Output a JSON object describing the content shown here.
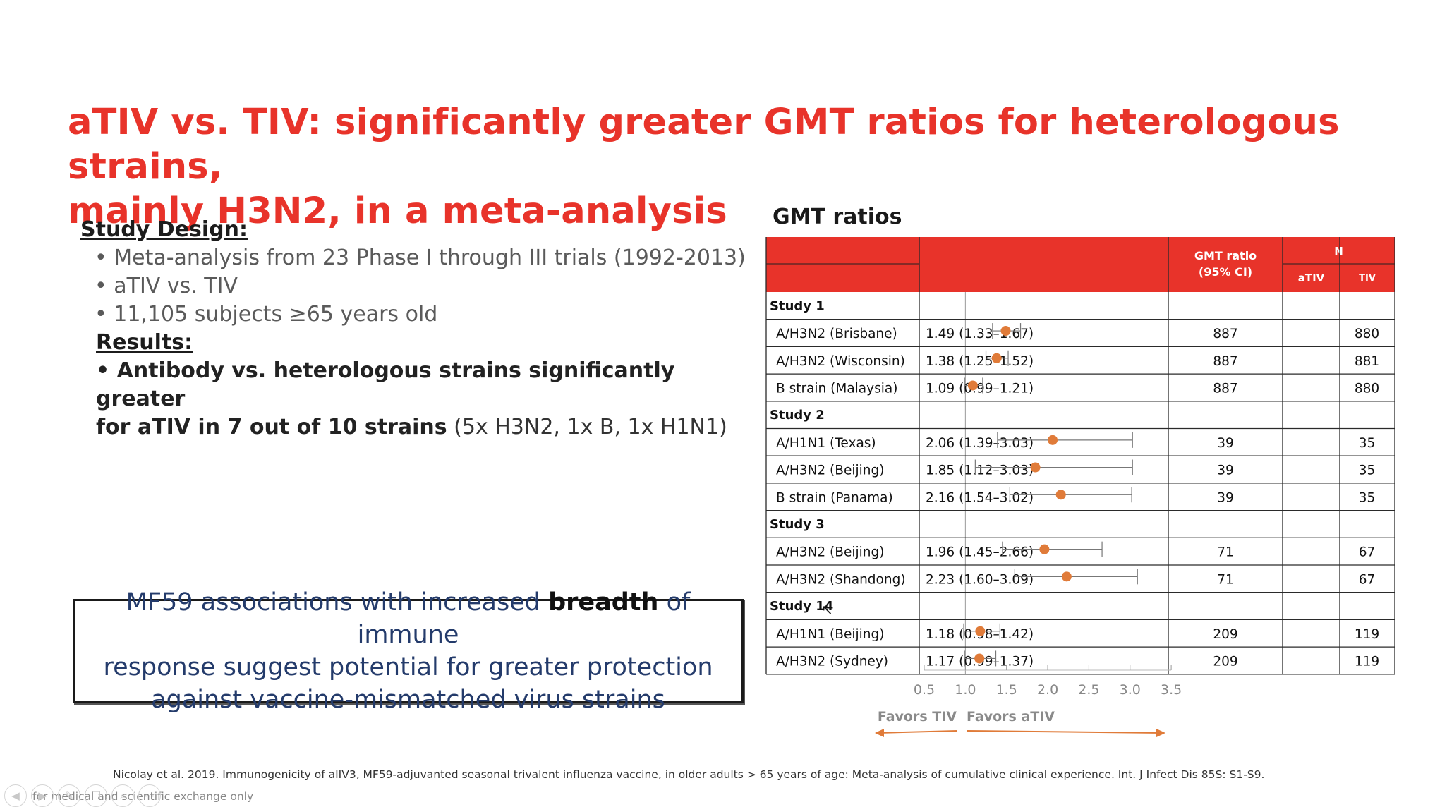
{
  "slide": {
    "title_line1": "aTIV vs. TIV: significantly greater GMT ratios for heterologous strains,",
    "title_line2": "mainly H3N2, in a meta-analysis"
  },
  "study_design": {
    "heading": "Study Design:",
    "bullets": [
      "Meta-analysis from 23 Phase I through III trials (1992-2013)",
      "aTIV vs. TIV",
      "11,105 subjects ≥65 years old"
    ]
  },
  "results": {
    "heading": "Results:",
    "line1_bold": "• Antibody vs. heterologous strains  significantly greater",
    "line2_bold": "for aTIV in 7 out of 10 strains",
    "line2_normal": " (5x H3N2, 1x B, 1x H1N1)"
  },
  "callout": {
    "part1": "MF59 associations with increased ",
    "bold": "breadth",
    "part2": " of immune",
    "line2": "response suggest potential for greater protection",
    "line3": "against vaccine-mismatched virus strains"
  },
  "chart_title": "GMT ratios",
  "chart_data": {
    "type": "forest",
    "header": {
      "gmt_line1": "GMT ratio",
      "gmt_line2": "(95% CI)",
      "n": "N",
      "ativ": "aTIV",
      "tiv": "TIV"
    },
    "xlim": [
      0.5,
      3.5
    ],
    "ticks": [
      "0.5",
      "1.0",
      "1.5",
      "2.0",
      "2.5",
      "3.0",
      "3.5"
    ],
    "reference_line": 1.0,
    "favors_left": "Favors TIV",
    "favors_right": "Favors aTIV",
    "colors": {
      "header": "#e8332a",
      "point": "#e07b39",
      "arrow": "#e07b39"
    },
    "rows": [
      {
        "study": "Study 1"
      },
      {
        "label": "A/H3N2 (Brisbane)",
        "value": 1.49,
        "lo": 1.33,
        "hi": 1.67,
        "ci": "1.49 (1.33–1.67)",
        "n_ativ": "887",
        "n_tiv": "880"
      },
      {
        "label": "A/H3N2 (Wisconsin)",
        "value": 1.38,
        "lo": 1.25,
        "hi": 1.52,
        "ci": "1.38 (1.25–1.52)",
        "n_ativ": "887",
        "n_tiv": "881"
      },
      {
        "label": "B strain (Malaysia)",
        "value": 1.09,
        "lo": 0.99,
        "hi": 1.21,
        "ci": "1.09 (0.99–1.21)",
        "n_ativ": "887",
        "n_tiv": "880"
      },
      {
        "study": "Study 2"
      },
      {
        "label": "A/H1N1 (Texas)",
        "value": 2.06,
        "lo": 1.39,
        "hi": 3.03,
        "ci": "2.06 (1.39–3.03)",
        "n_ativ": "39",
        "n_tiv": "35"
      },
      {
        "label": "A/H3N2 (Beijing)",
        "value": 1.85,
        "lo": 1.12,
        "hi": 3.03,
        "ci": "1.85 (1.12–3.03)",
        "n_ativ": "39",
        "n_tiv": "35"
      },
      {
        "label": "B strain (Panama)",
        "value": 2.16,
        "lo": 1.54,
        "hi": 3.02,
        "ci": "2.16 (1.54–3.02)",
        "n_ativ": "39",
        "n_tiv": "35"
      },
      {
        "study": "Study 3"
      },
      {
        "label": "A/H3N2 (Beijing)",
        "value": 1.96,
        "lo": 1.45,
        "hi": 2.66,
        "ci": "1.96 (1.45–2.66)",
        "n_ativ": "71",
        "n_tiv": "67"
      },
      {
        "label": "A/H3N2 (Shandong)",
        "value": 2.23,
        "lo": 1.6,
        "hi": 3.09,
        "ci": "2.23 (1.60–3.09)",
        "n_ativ": "71",
        "n_tiv": "67"
      },
      {
        "study": "Study 14"
      },
      {
        "label": "A/H1N1 (Beijing)",
        "value": 1.18,
        "lo": 0.98,
        "hi": 1.42,
        "ci": "1.18 (0.98–1.42)",
        "n_ativ": "209",
        "n_tiv": "119"
      },
      {
        "label": "A/H3N2 (Sydney)",
        "value": 1.17,
        "lo": 0.99,
        "hi": 1.37,
        "ci": "1.17 (0.99–1.37)",
        "n_ativ": "209",
        "n_tiv": "119"
      }
    ]
  },
  "citation": "Nicolay et al. 2019. Immunogenicity of aIIV3, MF59-adjuvanted seasonal trivalent influenza vaccine, in older adults > 65 years of age: Meta-analysis of cumulative clinical experience. Int. J Infect Dis 85S: S1-S9.",
  "footer_note": "for medical and scientific exchange only",
  "nav_icons": [
    "back-icon",
    "forward-icon",
    "pen-icon",
    "copy-icon",
    "search-icon",
    "more-icon"
  ]
}
